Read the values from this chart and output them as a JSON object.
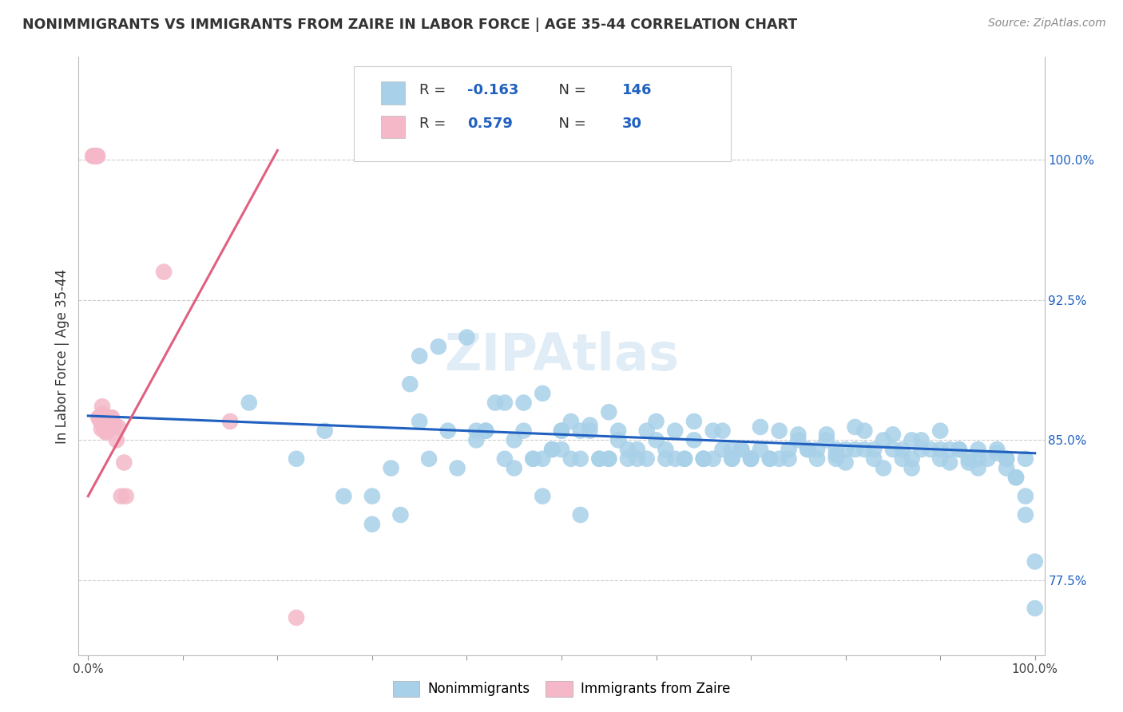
{
  "title": "NONIMMIGRANTS VS IMMIGRANTS FROM ZAIRE IN LABOR FORCE | AGE 35-44 CORRELATION CHART",
  "source": "Source: ZipAtlas.com",
  "ylabel": "In Labor Force | Age 35-44",
  "xlim": [
    -0.01,
    1.01
  ],
  "ylim": [
    0.735,
    1.055
  ],
  "yticks": [
    0.775,
    0.85,
    0.925,
    1.0
  ],
  "ytick_labels": [
    "77.5%",
    "85.0%",
    "92.5%",
    "100.0%"
  ],
  "xtick_labels": [
    "0.0%",
    "100.0%"
  ],
  "xtick_pos": [
    0.0,
    1.0
  ],
  "blue_color": "#a8d0e8",
  "pink_color": "#f4b8c8",
  "blue_line_color": "#2060c0",
  "pink_line_color": "#e06080",
  "watermark": "ZIPAtlas",
  "blue_trend_x": [
    0.0,
    1.0
  ],
  "blue_trend_y": [
    0.863,
    0.843
  ],
  "pink_trend_x": [
    0.0,
    0.2
  ],
  "pink_trend_y": [
    0.82,
    1.005
  ],
  "blue_x": [
    0.17,
    0.22,
    0.25,
    0.27,
    0.3,
    0.32,
    0.33,
    0.34,
    0.35,
    0.37,
    0.38,
    0.39,
    0.41,
    0.42,
    0.44,
    0.44,
    0.45,
    0.46,
    0.47,
    0.48,
    0.48,
    0.49,
    0.5,
    0.5,
    0.51,
    0.52,
    0.52,
    0.53,
    0.54,
    0.55,
    0.55,
    0.56,
    0.57,
    0.58,
    0.59,
    0.59,
    0.6,
    0.61,
    0.62,
    0.63,
    0.63,
    0.64,
    0.65,
    0.65,
    0.66,
    0.67,
    0.68,
    0.68,
    0.69,
    0.7,
    0.7,
    0.71,
    0.72,
    0.73,
    0.73,
    0.74,
    0.75,
    0.76,
    0.77,
    0.78,
    0.79,
    0.79,
    0.8,
    0.81,
    0.82,
    0.82,
    0.83,
    0.84,
    0.85,
    0.86,
    0.87,
    0.87,
    0.88,
    0.89,
    0.9,
    0.9,
    0.91,
    0.92,
    0.93,
    0.94,
    0.94,
    0.95,
    0.96,
    0.97,
    0.97,
    0.98,
    0.99,
    0.99,
    1.0,
    1.0,
    0.35,
    0.4,
    0.43,
    0.46,
    0.48,
    0.5,
    0.53,
    0.56,
    0.6,
    0.64,
    0.67,
    0.71,
    0.75,
    0.78,
    0.81,
    0.85,
    0.88,
    0.92,
    0.96,
    0.99,
    0.3,
    0.36,
    0.41,
    0.45,
    0.49,
    0.52,
    0.55,
    0.58,
    0.62,
    0.66,
    0.69,
    0.72,
    0.76,
    0.79,
    0.83,
    0.86,
    0.9,
    0.93,
    0.97,
    0.42,
    0.47,
    0.51,
    0.54,
    0.57,
    0.61,
    0.65,
    0.68,
    0.7,
    0.74,
    0.77,
    0.8,
    0.84,
    0.87,
    0.91,
    0.94,
    0.98
  ],
  "blue_y": [
    0.87,
    0.84,
    0.855,
    0.82,
    0.805,
    0.835,
    0.81,
    0.88,
    0.86,
    0.9,
    0.855,
    0.835,
    0.85,
    0.855,
    0.87,
    0.84,
    0.85,
    0.855,
    0.84,
    0.82,
    0.84,
    0.845,
    0.855,
    0.845,
    0.86,
    0.84,
    0.81,
    0.855,
    0.84,
    0.865,
    0.84,
    0.85,
    0.845,
    0.84,
    0.84,
    0.855,
    0.85,
    0.845,
    0.855,
    0.84,
    0.84,
    0.85,
    0.84,
    0.84,
    0.855,
    0.845,
    0.845,
    0.84,
    0.845,
    0.84,
    0.84,
    0.845,
    0.84,
    0.855,
    0.84,
    0.845,
    0.85,
    0.845,
    0.845,
    0.85,
    0.84,
    0.845,
    0.845,
    0.845,
    0.855,
    0.845,
    0.845,
    0.85,
    0.845,
    0.845,
    0.85,
    0.84,
    0.845,
    0.845,
    0.845,
    0.855,
    0.845,
    0.845,
    0.84,
    0.845,
    0.84,
    0.84,
    0.845,
    0.84,
    0.84,
    0.83,
    0.82,
    0.81,
    0.785,
    0.76,
    0.895,
    0.905,
    0.87,
    0.87,
    0.875,
    0.855,
    0.858,
    0.855,
    0.86,
    0.86,
    0.855,
    0.857,
    0.853,
    0.853,
    0.857,
    0.853,
    0.85,
    0.845,
    0.843,
    0.84,
    0.82,
    0.84,
    0.855,
    0.835,
    0.845,
    0.855,
    0.84,
    0.845,
    0.84,
    0.84,
    0.845,
    0.84,
    0.845,
    0.842,
    0.84,
    0.84,
    0.84,
    0.838,
    0.835,
    0.855,
    0.84,
    0.84,
    0.84,
    0.84,
    0.84,
    0.84,
    0.84,
    0.84,
    0.84,
    0.84,
    0.838,
    0.835,
    0.835,
    0.838,
    0.835,
    0.83
  ],
  "pink_x": [
    0.005,
    0.006,
    0.007,
    0.008,
    0.009,
    0.01,
    0.011,
    0.012,
    0.013,
    0.014,
    0.015,
    0.016,
    0.017,
    0.018,
    0.019,
    0.02,
    0.022,
    0.025,
    0.028,
    0.03,
    0.032,
    0.035,
    0.038,
    0.04,
    0.015,
    0.02,
    0.025,
    0.08,
    0.15,
    0.22
  ],
  "pink_y": [
    1.002,
    1.002,
    1.002,
    1.002,
    1.002,
    1.002,
    0.862,
    0.862,
    0.86,
    0.856,
    0.864,
    0.858,
    0.857,
    0.855,
    0.854,
    0.858,
    0.86,
    0.862,
    0.858,
    0.85,
    0.857,
    0.82,
    0.838,
    0.82,
    0.868,
    0.858,
    0.862,
    0.94,
    0.86,
    0.755
  ],
  "legend_r1": "R = -0.163",
  "legend_n1": "N = 146",
  "legend_r2": "R =  0.579",
  "legend_n2": "N =  30"
}
